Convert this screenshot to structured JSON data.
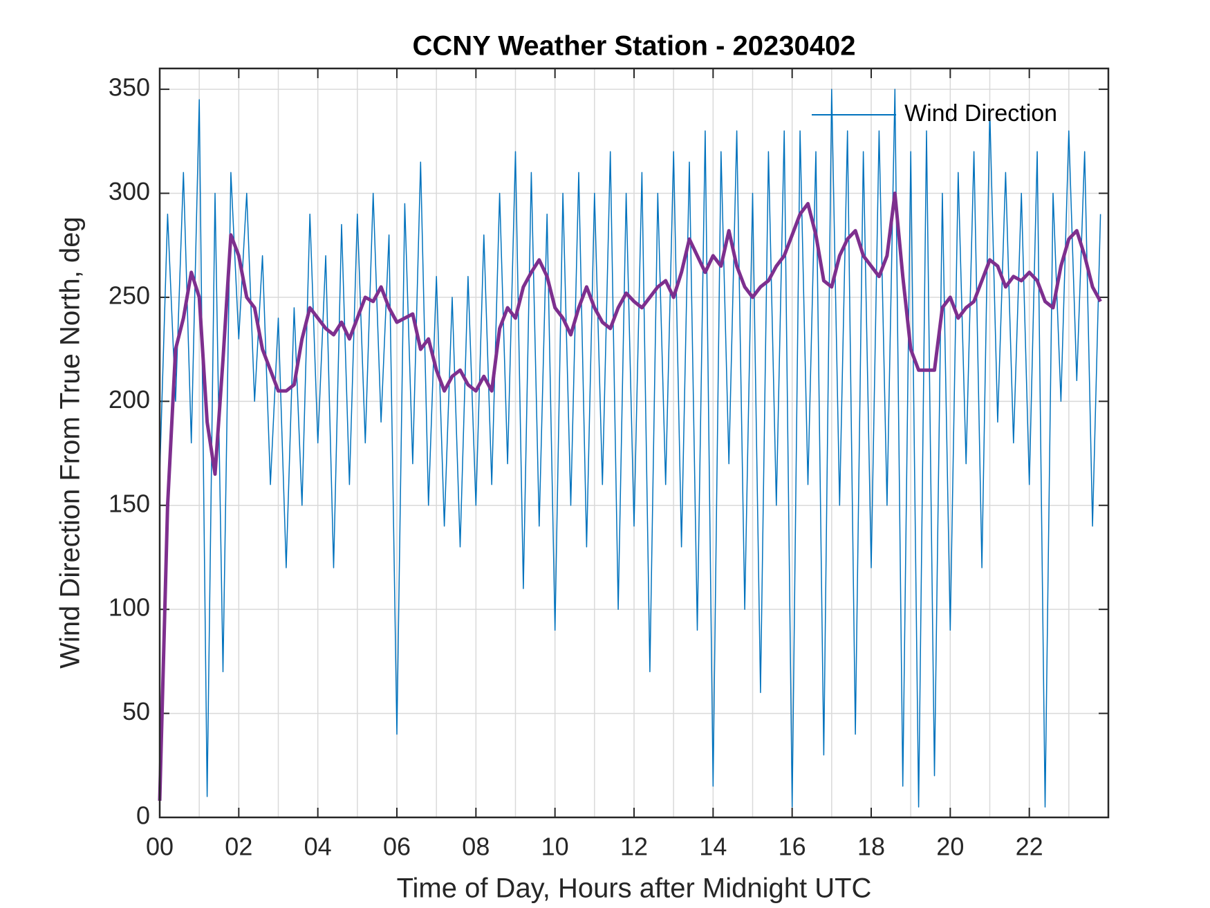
{
  "chart_data": {
    "type": "line",
    "title": "CCNY Weather Station - 20230402",
    "xlabel": "Time of Day, Hours after Midnight UTC",
    "ylabel": "Wind Direction From True North, deg",
    "x": [
      0,
      0.2,
      0.4,
      0.6,
      0.8,
      1,
      1.2,
      1.4,
      1.6,
      1.8,
      2,
      2.2,
      2.4,
      2.6,
      2.8,
      3,
      3.2,
      3.4,
      3.6,
      3.8,
      4,
      4.2,
      4.4,
      4.6,
      4.8,
      5,
      5.2,
      5.4,
      5.6,
      5.8,
      6,
      6.2,
      6.4,
      6.6,
      6.8,
      7,
      7.2,
      7.4,
      7.6,
      7.8,
      8,
      8.2,
      8.4,
      8.6,
      8.8,
      9,
      9.2,
      9.4,
      9.6,
      9.8,
      10,
      10.2,
      10.4,
      10.6,
      10.8,
      11,
      11.2,
      11.4,
      11.6,
      11.8,
      12,
      12.2,
      12.4,
      12.6,
      12.8,
      13,
      13.2,
      13.4,
      13.6,
      13.8,
      14,
      14.2,
      14.4,
      14.6,
      14.8,
      15,
      15.2,
      15.4,
      15.6,
      15.8,
      16,
      16.2,
      16.4,
      16.6,
      16.8,
      17,
      17.2,
      17.4,
      17.6,
      17.8,
      18,
      18.2,
      18.4,
      18.6,
      18.8,
      19,
      19.2,
      19.4,
      19.6,
      19.8,
      20,
      20.2,
      20.4,
      20.6,
      20.8,
      21,
      21.2,
      21.4,
      21.6,
      21.8,
      22,
      22.2,
      22.4,
      22.6,
      22.8,
      23,
      23.2,
      23.4,
      23.6,
      23.8
    ],
    "series": [
      {
        "name": "Wind Direction",
        "color": "#0072bd",
        "width": 1.5,
        "values": [
          165,
          290,
          200,
          310,
          180,
          345,
          10,
          300,
          70,
          310,
          230,
          300,
          200,
          270,
          160,
          240,
          120,
          245,
          150,
          290,
          180,
          270,
          120,
          285,
          160,
          290,
          180,
          300,
          190,
          280,
          40,
          295,
          170,
          315,
          150,
          260,
          140,
          250,
          130,
          260,
          150,
          280,
          160,
          300,
          170,
          320,
          110,
          310,
          140,
          290,
          90,
          300,
          150,
          310,
          130,
          300,
          160,
          320,
          100,
          300,
          140,
          310,
          70,
          300,
          160,
          320,
          130,
          315,
          90,
          330,
          15,
          320,
          170,
          330,
          100,
          300,
          60,
          320,
          150,
          330,
          5,
          330,
          160,
          320,
          30,
          350,
          150,
          330,
          40,
          320,
          120,
          330,
          150,
          350,
          15,
          320,
          5,
          330,
          20,
          300,
          90,
          310,
          170,
          320,
          120,
          340,
          190,
          310,
          180,
          300,
          160,
          320,
          5,
          300,
          200,
          330,
          210,
          320,
          140,
          290
        ]
      },
      {
        "color": "#7e2f8e",
        "width": 5,
        "values": [
          8,
          150,
          225,
          240,
          262,
          250,
          190,
          165,
          220,
          280,
          270,
          250,
          245,
          225,
          215,
          205,
          205,
          208,
          230,
          245,
          240,
          235,
          232,
          238,
          230,
          240,
          250,
          248,
          255,
          245,
          238,
          240,
          242,
          225,
          230,
          215,
          205,
          212,
          215,
          208,
          205,
          212,
          205,
          235,
          245,
          240,
          255,
          262,
          268,
          260,
          245,
          240,
          232,
          245,
          255,
          245,
          238,
          235,
          245,
          252,
          248,
          245,
          250,
          255,
          258,
          250,
          262,
          278,
          270,
          262,
          270,
          265,
          282,
          265,
          255,
          250,
          255,
          258,
          265,
          270,
          280,
          290,
          295,
          280,
          258,
          255,
          270,
          278,
          282,
          270,
          265,
          260,
          270,
          300,
          260,
          225,
          215,
          215,
          215,
          245,
          250,
          240,
          245,
          248,
          258,
          268,
          265,
          255,
          260,
          258,
          262,
          258,
          248,
          245,
          265,
          278,
          282,
          270,
          255,
          248
        ]
      }
    ],
    "xlim": [
      0,
      24
    ],
    "ylim": [
      0,
      360
    ],
    "xticks": [
      {
        "value": 0,
        "label": "00"
      },
      {
        "value": 2,
        "label": "02"
      },
      {
        "value": 4,
        "label": "04"
      },
      {
        "value": 6,
        "label": "06"
      },
      {
        "value": 8,
        "label": "08"
      },
      {
        "value": 10,
        "label": "10"
      },
      {
        "value": 12,
        "label": "12"
      },
      {
        "value": 14,
        "label": "14"
      },
      {
        "value": 16,
        "label": "16"
      },
      {
        "value": 18,
        "label": "18"
      },
      {
        "value": 20,
        "label": "20"
      },
      {
        "value": 22,
        "label": "22"
      }
    ],
    "x_minor_ticks": [
      1,
      3,
      5,
      7,
      9,
      11,
      13,
      15,
      17,
      19,
      21,
      23
    ],
    "yticks": [
      0,
      50,
      100,
      150,
      200,
      250,
      300,
      350
    ],
    "grid": true,
    "legend": "upper right"
  }
}
